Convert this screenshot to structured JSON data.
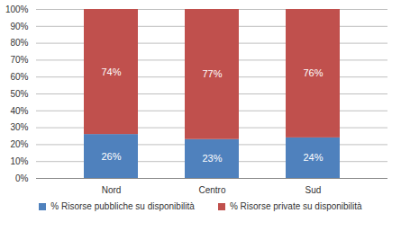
{
  "chart_data": {
    "type": "bar",
    "stacked": true,
    "grid": true,
    "data_labels": true,
    "legend": "bottom",
    "categories": [
      "Nord",
      "Centro",
      "Sud"
    ],
    "series": [
      {
        "name": "% Risorse pubbliche su disponibilità",
        "color": "#4f81bd",
        "values": [
          26,
          23,
          24
        ],
        "value_labels": [
          "26%",
          "23%",
          "24%"
        ]
      },
      {
        "name": "% Risorse private su disponibilità",
        "color": "#c0504d",
        "values": [
          74,
          77,
          76
        ],
        "value_labels": [
          "74%",
          "77%",
          "76%"
        ]
      }
    ],
    "ylim": [
      0,
      100
    ],
    "yticks": [
      {
        "value": 0,
        "label": "0%"
      },
      {
        "value": 10,
        "label": "10%"
      },
      {
        "value": 20,
        "label": "20%"
      },
      {
        "value": 30,
        "label": "30%"
      },
      {
        "value": 40,
        "label": "40%"
      },
      {
        "value": 50,
        "label": "50%"
      },
      {
        "value": 60,
        "label": "60%"
      },
      {
        "value": 70,
        "label": "70%"
      },
      {
        "value": 80,
        "label": "80%"
      },
      {
        "value": 90,
        "label": "90%"
      },
      {
        "value": 100,
        "label": "100%"
      }
    ]
  }
}
